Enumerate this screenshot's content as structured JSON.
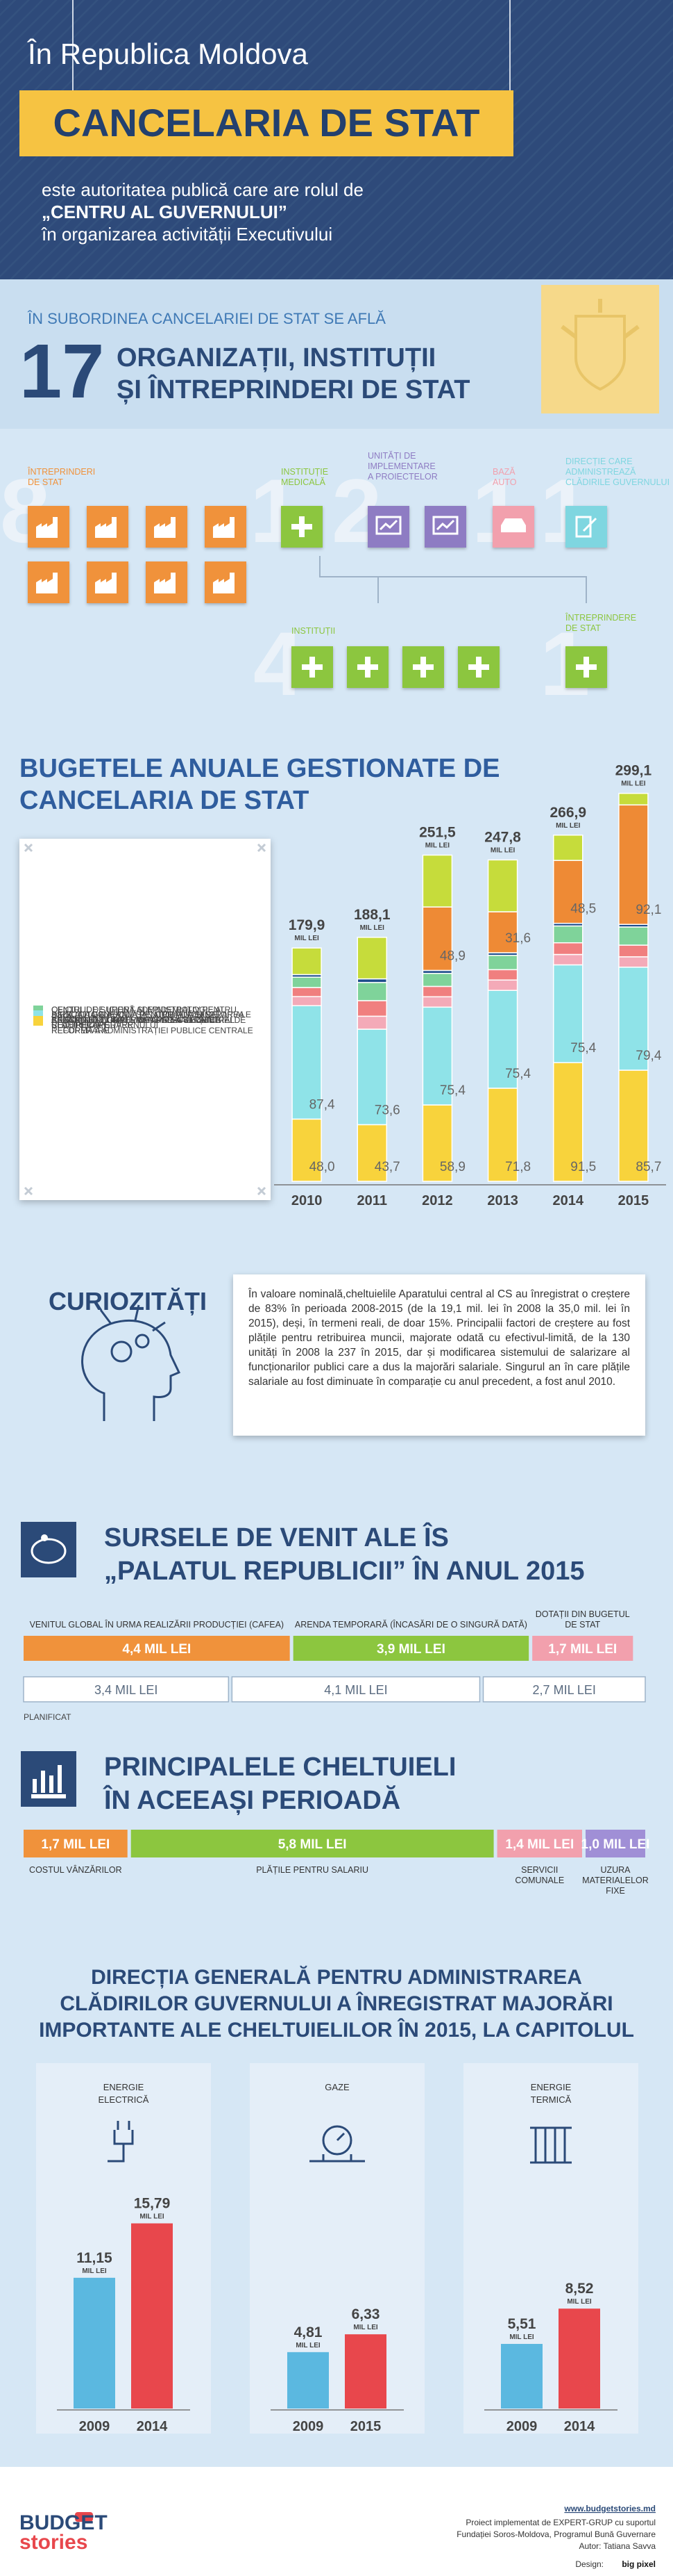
{
  "header": {
    "kicker": "În Republica Moldova",
    "title": "CANCELARIA DE STAT",
    "subtitle": [
      "este autoritatea publică care are rolul de",
      "„CENTRU AL GUVERNULUI”",
      "în organizarea activității Executivului"
    ]
  },
  "subordinate": {
    "intro": "ÎN SUBORDINEA CANCELARIEI DE STAT SE AFLĂ",
    "count": 17,
    "title": [
      "ORGANIZAȚII, INSTITUȚII",
      "ȘI ÎNTREPRINDERI DE STAT"
    ],
    "groups": [
      {
        "count": 8,
        "label": [
          "ÎNTREPRINDERI",
          "DE STAT"
        ],
        "color": "#f0923b"
      },
      {
        "count": 1,
        "label": [
          "INSTITUȚIE",
          "MEDICALĂ"
        ],
        "color": "#8cc63f"
      },
      {
        "count": 2,
        "label": [
          "UNITĂȚI DE",
          "IMPLEMENTARE",
          "A PROIECTELOR"
        ],
        "color": "#8e7cc3"
      },
      {
        "count": 1,
        "label": [
          "BAZĂ",
          "AUTO"
        ],
        "color": "#f2a0ad"
      },
      {
        "count": 1,
        "label": [
          "DIRECȚIE CARE",
          "ADMINISTREAZĂ",
          "CLĂDIRILE GUVERNULUI"
        ],
        "color": "#7fd6e0"
      },
      {
        "count": 4,
        "label": [
          "INSTITUȚII"
        ],
        "color": "#8cc63f"
      },
      {
        "count": 1,
        "label": [
          "ÎNTREPRINDERE",
          "DE STAT"
        ],
        "color": "#8cc63f"
      }
    ]
  },
  "curiosities": {
    "title": "CURIOZITĂȚI",
    "text": "În valoare nominală,cheltuielile Aparatului central al CS au înregistrat o creștere de 83% în perioada 2008-2015 (de la 19,1 mil. lei în 2008 la 35,0 mil. lei în 2015), deși, în termeni reali, de doar 15%. Principalii factori de creștere au fost plățile pentru retribuirea muncii, majorate odată cu efectivul-limită, de la 130 unități în 2008 la 237 în 2015, dar și modificarea sistemului de salarizare al funcționarilor publici care a dus la majorări salariale. Singurul an în care plățile salariale au fost diminuate în comparație cu anul precedent, a fost anul 2010."
  },
  "buildings": {
    "title": [
      "DIRECȚIA GENERALĂ PENTRU ADMINISTRAREA",
      "CLĂDIRILOR GUVERNULUI A ÎNREGISTRAT MAJORĂRI",
      "IMPORTANTE ALE CHELTUIELILOR ÎN 2015, LA CAPITOLUL"
    ]
  },
  "chart_data": [
    {
      "type": "stacked-bar",
      "title": [
        "BUGETELE ANUALE GESTIONATE DE",
        "CANCELARIA DE STAT"
      ],
      "categories": [
        "2010",
        "2011",
        "2012",
        "2013",
        "2014",
        "2015"
      ],
      "ylim": [
        0,
        300
      ],
      "total_labels": [
        "179,9",
        "188,1",
        "251,5",
        "247,8",
        "266,9",
        "299,1"
      ],
      "total_unit": "MIL LEI",
      "series": [
        {
          "name": "OFICIUL DE SUPORT ADMINISTRATIV PENTRU ASISTENȚĂ ÎN IMPLEMENTAREA STRATEGIEI DE REFORMĂ A ADMINISTRAȚIEI PUBLICE CENTRALE",
          "color": "#c6dc3b",
          "values": [
            20.5,
            32,
            40,
            40,
            19.5,
            8.9
          ]
        },
        {
          "name": "CENTRUL DE GUVERNARE ELECTRONICĂ",
          "color": "#ee8a35",
          "values": [
            0,
            0,
            48.9,
            31.6,
            48.5,
            92.1
          ],
          "value_labels": [
            null,
            null,
            "48,9",
            "31,6",
            "48,5",
            "92,1"
          ]
        },
        {
          "name": "BAZA AUTO A ASOCIAȚIEI CURATIV-SANATORIALE ȘI DE RECUPERARE",
          "color": "#1f4e8c",
          "values": [
            2,
            2.8,
            2.3,
            2,
            2,
            2
          ]
        },
        {
          "name": "CENTRUL DE IGIENĂ ȘI EPIDEMIOLOGIE AL ASOCIAȚIEI CURATIV-SANATORIALE ȘI DE RECUPERARE",
          "color": "#7fd39a",
          "values": [
            8,
            14,
            10,
            11,
            13,
            14
          ]
        },
        {
          "name": "ASOCIAȚIA CURATIV-SANATORIALĂ ȘI DE RECUPERARE",
          "color": "#f07f7f",
          "values": [
            7,
            12,
            8,
            8,
            9,
            9
          ]
        },
        {
          "name": "BAZĂ AUTO",
          "color": "#f4aab8",
          "values": [
            7,
            10,
            8,
            8,
            8,
            8
          ]
        },
        {
          "name": "DIRECȚIA GENERALĂ PENTRU ADMINISTRAREA CLĂDIRILOR GUVERNULUI",
          "color": "#8fe3e8",
          "values": [
            87.4,
            73.6,
            75.4,
            75.4,
            75.4,
            79.4
          ],
          "value_labels": [
            "87,4",
            "73,6",
            "75,4",
            "75,4",
            "75,4",
            "79,4"
          ]
        },
        {
          "name": "SURSE GESTIONATE DE APARATUL CENTRAL",
          "color": "#f8d33c",
          "values": [
            48.0,
            43.7,
            58.9,
            71.8,
            91.5,
            85.7
          ],
          "value_labels": [
            "48,0",
            "43,7",
            "58,9",
            "71,8",
            "91,5",
            "85,7"
          ]
        }
      ]
    },
    {
      "type": "segment-bar",
      "title": [
        "SURSELE DE VENIT ALE ÎS",
        "„PALATUL REPUBLICII” ÎN ANUL 2015"
      ],
      "categories": [
        "VENITUL GLOBAL ÎN URMA REALIZĂRII PRODUCȚIEI (CAFEA)",
        "ARENDA TEMPORARĂ (ÎNCASĂRI DE O SINGURĂ DATĂ)",
        "DOTAȚII DIN BUGETUL DE STAT"
      ],
      "values": [
        4.4,
        3.9,
        1.7
      ],
      "value_labels": [
        "4,4 MIL LEI",
        "3,9 MIL LEI",
        "1,7 MIL LEI"
      ],
      "colors": [
        "#f0923b",
        "#8cc63f",
        "#f2a0ad"
      ],
      "xlim": [
        0,
        10.2
      ],
      "planned": {
        "name": "PLANIFICAT",
        "values": [
          3.4,
          4.1,
          2.7
        ],
        "value_labels": [
          "3,4 MIL LEI",
          "4,1 MIL LEI",
          "2,7 MIL LEI"
        ]
      }
    },
    {
      "type": "segment-bar",
      "title": [
        "PRINCIPALELE CHELTUIELI",
        "ÎN ACEEAȘI PERIOADĂ"
      ],
      "categories": [
        "COSTUL VÂNZĂRILOR",
        "PLĂȚILE PENTRU SALARIU",
        "SERVICII COMUNALE",
        "UZURA MATERIALELOR FIXE"
      ],
      "values": [
        1.7,
        5.8,
        1.4,
        1.0
      ],
      "value_labels": [
        "1,7 MIL LEI",
        "5,8 MIL LEI",
        "1,4 MIL LEI",
        "1,0 MIL LEI"
      ],
      "colors": [
        "#f0923b",
        "#8cc63f",
        "#f2a0ad",
        "#a08fd6"
      ],
      "xlim": [
        0,
        9.9
      ]
    },
    {
      "type": "bar",
      "title": [
        "ENERGIE",
        "ELECTRICĂ"
      ],
      "categories": [
        "2009",
        "2014"
      ],
      "values": [
        11.15,
        15.79
      ],
      "value_labels": [
        "11,15",
        "15,79"
      ],
      "unit": "MIL LEI",
      "colors": [
        "#5bb8e0",
        "#e8474c"
      ],
      "ylim": [
        0,
        16
      ]
    },
    {
      "type": "bar",
      "title": [
        "GAZE"
      ],
      "categories": [
        "2009",
        "2015"
      ],
      "values": [
        4.81,
        6.33
      ],
      "value_labels": [
        "4,81",
        "6,33"
      ],
      "unit": "MIL LEI",
      "colors": [
        "#5bb8e0",
        "#e8474c"
      ],
      "ylim": [
        0,
        16
      ]
    },
    {
      "type": "bar",
      "title": [
        "ENERGIE",
        "TERMICĂ"
      ],
      "categories": [
        "2009",
        "2014"
      ],
      "values": [
        5.51,
        8.52
      ],
      "value_labels": [
        "5,51",
        "8,52"
      ],
      "unit": "MIL LEI",
      "colors": [
        "#5bb8e0",
        "#e8474c"
      ],
      "ylim": [
        0,
        16
      ]
    }
  ],
  "footer": {
    "logo": [
      "BUDGET",
      "stories"
    ],
    "site": "www.budgetstories.md",
    "credits": [
      "Proiect implementat de EXPERT-GRUP cu suportul",
      "Fundației Soros-Moldova, Programul Bună Guvernare",
      "Autor: Tatiana Savva"
    ],
    "design_label": "Design:",
    "design_by": "big pixel"
  }
}
